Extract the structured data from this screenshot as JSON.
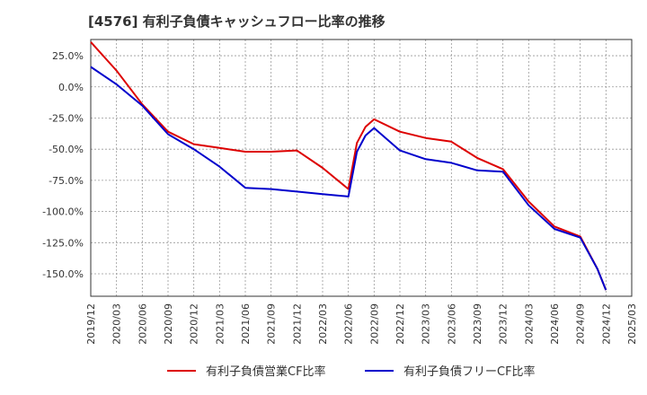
{
  "chart_data": {
    "type": "line",
    "title": "[4576]  有利子負債キャッシュフロー比率の推移",
    "xlabel": "",
    "ylabel": "",
    "x_ticks": [
      "2019/12",
      "2020/03",
      "2020/06",
      "2020/09",
      "2020/12",
      "2021/03",
      "2021/06",
      "2021/09",
      "2021/12",
      "2022/03",
      "2022/06",
      "2022/09",
      "2022/12",
      "2023/03",
      "2023/06",
      "2023/09",
      "2023/12",
      "2024/03",
      "2024/06",
      "2024/09",
      "2024/12",
      "2025/03"
    ],
    "y_ticks": [
      25,
      0,
      -25,
      -50,
      -75,
      -100,
      -125,
      -150
    ],
    "y_tick_labels": [
      "25.0%",
      "0.0%",
      "-25.0%",
      "-50.0%",
      "-75.0%",
      "-100.0%",
      "-125.0%",
      "-150.0%"
    ],
    "ylim": [
      -168,
      38
    ],
    "grid": true,
    "legend_position": "bottom",
    "series": [
      {
        "name": "有利子負債営業CF比率",
        "color": "#dd0000",
        "points": [
          [
            "2019/12",
            36
          ],
          [
            "2020/03",
            13
          ],
          [
            "2020/06",
            -14
          ],
          [
            "2020/09",
            -36
          ],
          [
            "2020/12",
            -46
          ],
          [
            "2021/03",
            -49
          ],
          [
            "2021/06",
            -52
          ],
          [
            "2021/09",
            -52
          ],
          [
            "2021/12",
            -51
          ],
          [
            "2022/03",
            -65
          ],
          [
            "2022/06",
            -82
          ],
          [
            "2022/07",
            -45
          ],
          [
            "2022/08",
            -32
          ],
          [
            "2022/09",
            -26
          ],
          [
            "2022/12",
            -36
          ],
          [
            "2023/03",
            -41
          ],
          [
            "2023/06",
            -44
          ],
          [
            "2023/09",
            -57
          ],
          [
            "2023/12",
            -66
          ],
          [
            "2024/03",
            -92
          ],
          [
            "2024/06",
            -112
          ],
          [
            "2024/09",
            -120
          ],
          [
            "2024/11",
            -146
          ],
          [
            "2024/12",
            -163
          ]
        ]
      },
      {
        "name": "有利子負債フリーCF比率",
        "color": "#0000cc",
        "points": [
          [
            "2019/12",
            16
          ],
          [
            "2020/03",
            2
          ],
          [
            "2020/06",
            -15
          ],
          [
            "2020/09",
            -38
          ],
          [
            "2020/12",
            -50
          ],
          [
            "2021/03",
            -64
          ],
          [
            "2021/06",
            -81
          ],
          [
            "2021/09",
            -82
          ],
          [
            "2021/12",
            -84
          ],
          [
            "2022/03",
            -86
          ],
          [
            "2022/06",
            -88
          ],
          [
            "2022/07",
            -52
          ],
          [
            "2022/08",
            -39
          ],
          [
            "2022/09",
            -33
          ],
          [
            "2022/12",
            -51
          ],
          [
            "2023/03",
            -58
          ],
          [
            "2023/06",
            -61
          ],
          [
            "2023/09",
            -67
          ],
          [
            "2023/12",
            -68
          ],
          [
            "2024/03",
            -95
          ],
          [
            "2024/06",
            -114
          ],
          [
            "2024/09",
            -121
          ],
          [
            "2024/11",
            -146
          ],
          [
            "2024/12",
            -163
          ]
        ]
      }
    ]
  }
}
